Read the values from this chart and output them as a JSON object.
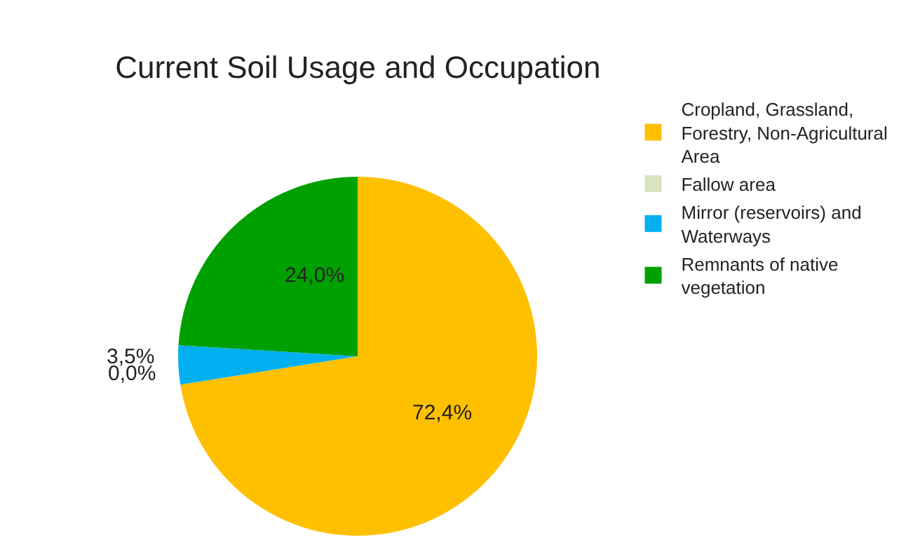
{
  "chart_data": {
    "type": "pie",
    "title": "Current Soil Usage and Occupation",
    "categories": [
      "Cropland, Grassland, Forestry, Non-Agricultural Area",
      "Fallow area",
      "Mirror (reservoirs) and Waterways",
      "Remnants of native vegetation"
    ],
    "values": [
      72.4,
      0.0,
      3.5,
      24.0
    ],
    "colors": [
      "#ffc000",
      "#d7e4bd",
      "#00b0f0",
      "#00a000"
    ],
    "value_labels": [
      "72,4%",
      "0,0%",
      "3,5%",
      "24,0%"
    ],
    "legend": "right"
  }
}
